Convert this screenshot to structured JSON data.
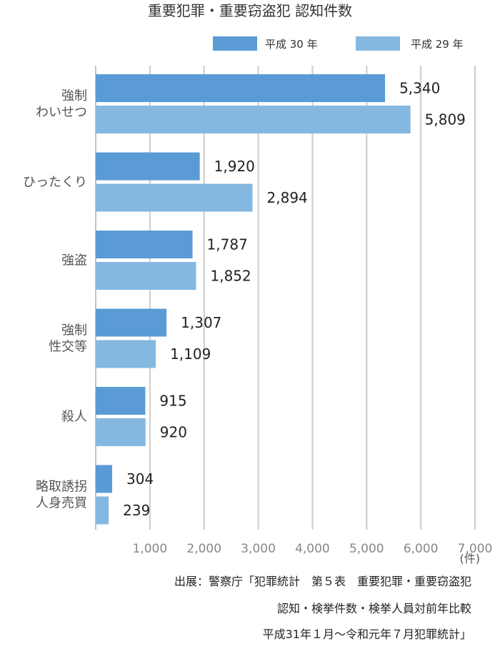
{
  "chart_data": {
    "type": "bar",
    "orientation": "horizontal",
    "title": "重要犯罪・重要窃盗犯 認知件数",
    "categories": [
      [
        "強制",
        "わいせつ"
      ],
      [
        "ひったくり"
      ],
      [
        "強盗"
      ],
      [
        "強制",
        "性交等"
      ],
      [
        "殺人"
      ],
      [
        "略取誘拐",
        "人身売買"
      ]
    ],
    "series": [
      {
        "name": "平成 30 年",
        "color": "#5b9bd5",
        "values": [
          5340,
          1920,
          1787,
          1307,
          915,
          304
        ]
      },
      {
        "name": "平成 29 年",
        "color": "#85b8e0",
        "values": [
          5809,
          2894,
          1852,
          1109,
          920,
          239
        ]
      }
    ],
    "value_labels": [
      [
        "5,340",
        "1,920",
        "1,787",
        "1,307",
        "915",
        "304"
      ],
      [
        "5,809",
        "2,894",
        "1,852",
        "1,109",
        "920",
        "239"
      ]
    ],
    "xlim": [
      0,
      7000
    ],
    "xticks": [
      1000,
      2000,
      3000,
      4000,
      5000,
      6000,
      7000
    ],
    "xtick_labels": [
      "1,000",
      "2,000",
      "3,000",
      "4,000",
      "5,000",
      "6,000",
      "7,000"
    ],
    "x_unit": "(件)",
    "grid": true,
    "legend_position": "top-right"
  },
  "source_lines": [
    "出展：警察庁「犯罪統計　第５表　重要犯罪・重要窃盗犯",
    "認知・検挙件数・検挙人員対前年比較",
    "平成31年１月～令和元年７月犯罪統計」"
  ],
  "colors": {
    "grid": "#cccccc",
    "axis": "#999999"
  }
}
